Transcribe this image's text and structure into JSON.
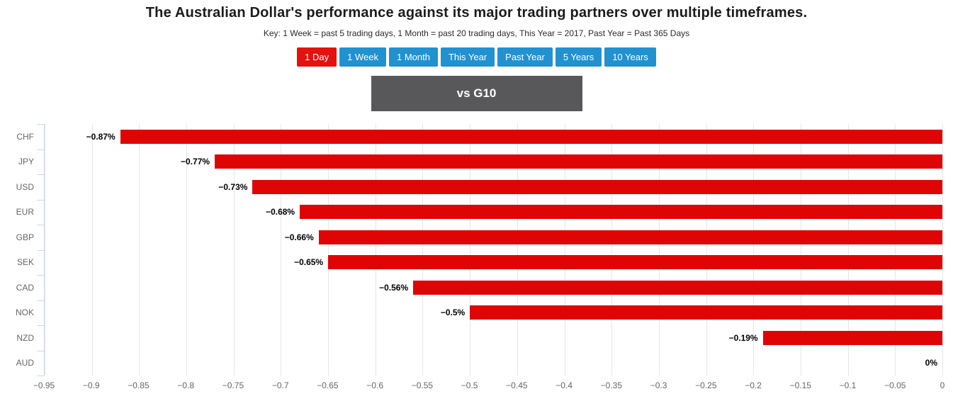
{
  "title": "The Australian Dollar's performance against its major trading partners over multiple timeframes.",
  "key_note": "Key: 1 Week = past 5 trading days, 1 Month = past 20 trading days, This Year = 2017, Past Year = Past 365 Days",
  "timeframes": [
    {
      "label": "1 Day",
      "active": true
    },
    {
      "label": "1 Week",
      "active": false
    },
    {
      "label": "1 Month",
      "active": false
    },
    {
      "label": "This Year",
      "active": false
    },
    {
      "label": "Past Year",
      "active": false
    },
    {
      "label": "5 Years",
      "active": false
    },
    {
      "label": "10 Years",
      "active": false
    }
  ],
  "group_header": "vs G10",
  "colors": {
    "bar": "#e00505",
    "active_button": "#e3120f",
    "inactive_button": "#2191d0",
    "banner_bg": "#58585a",
    "axis_line": "#ccd6eb",
    "gridline": "#e6e6e6"
  },
  "chart_data": {
    "type": "bar",
    "orientation": "horizontal",
    "title": "vs G10",
    "xlabel": "",
    "ylabel": "",
    "grid": true,
    "legend": false,
    "categories": [
      "CHF",
      "JPY",
      "USD",
      "EUR",
      "GBP",
      "SEK",
      "CAD",
      "NOK",
      "NZD",
      "AUD"
    ],
    "values": [
      -0.87,
      -0.77,
      -0.73,
      -0.68,
      -0.66,
      -0.65,
      -0.56,
      -0.5,
      -0.19,
      0
    ],
    "data_labels": [
      "−0.87%",
      "−0.77%",
      "−0.73%",
      "−0.68%",
      "−0.66%",
      "−0.65%",
      "−0.56%",
      "−0.5%",
      "−0.19%",
      "0%"
    ],
    "xlim": [
      -0.95,
      0
    ],
    "x_ticks": [
      -0.95,
      -0.9,
      -0.85,
      -0.8,
      -0.75,
      -0.7,
      -0.65,
      -0.6,
      -0.55,
      -0.5,
      -0.45,
      -0.4,
      -0.35,
      -0.3,
      -0.25,
      -0.2,
      -0.15,
      -0.1,
      -0.05,
      0
    ],
    "x_tick_labels": [
      "−0.95",
      "−0.9",
      "−0.85",
      "−0.8",
      "−0.75",
      "−0.7",
      "−0.65",
      "−0.6",
      "−0.55",
      "−0.5",
      "−0.45",
      "−0.4",
      "−0.35",
      "−0.3",
      "−0.25",
      "−0.2",
      "−0.15",
      "−0.1",
      "−0.05",
      "0"
    ]
  }
}
